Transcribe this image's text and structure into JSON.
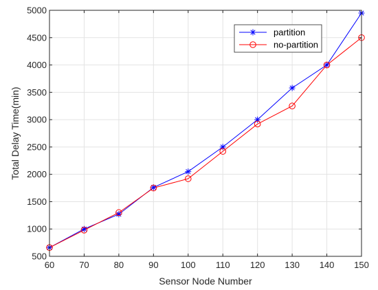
{
  "chart_data": {
    "type": "line",
    "title": "",
    "xlabel": "Sensor Node Number",
    "ylabel": "Total Delay Time(min)",
    "x": [
      60,
      70,
      80,
      90,
      100,
      110,
      120,
      130,
      140,
      150
    ],
    "xlim": [
      60,
      150
    ],
    "ylim": [
      500,
      5000
    ],
    "xticks": [
      "60",
      "70",
      "80",
      "90",
      "100",
      "110",
      "120",
      "130",
      "140",
      "150"
    ],
    "yticks": [
      "500",
      "1000",
      "1500",
      "2000",
      "2500",
      "3000",
      "3500",
      "4000",
      "4500",
      "5000"
    ],
    "grid": true,
    "legend_position": "top-right",
    "series": [
      {
        "name": "partition",
        "color": "#0000ff",
        "marker": "asterisk",
        "values": [
          660,
          1000,
          1270,
          1760,
          2050,
          2500,
          3000,
          3580,
          4000,
          4950
        ]
      },
      {
        "name": "no-partition",
        "color": "#ff0000",
        "marker": "circle",
        "values": [
          660,
          980,
          1300,
          1750,
          1920,
          2420,
          2920,
          3250,
          4000,
          4500
        ]
      }
    ]
  }
}
